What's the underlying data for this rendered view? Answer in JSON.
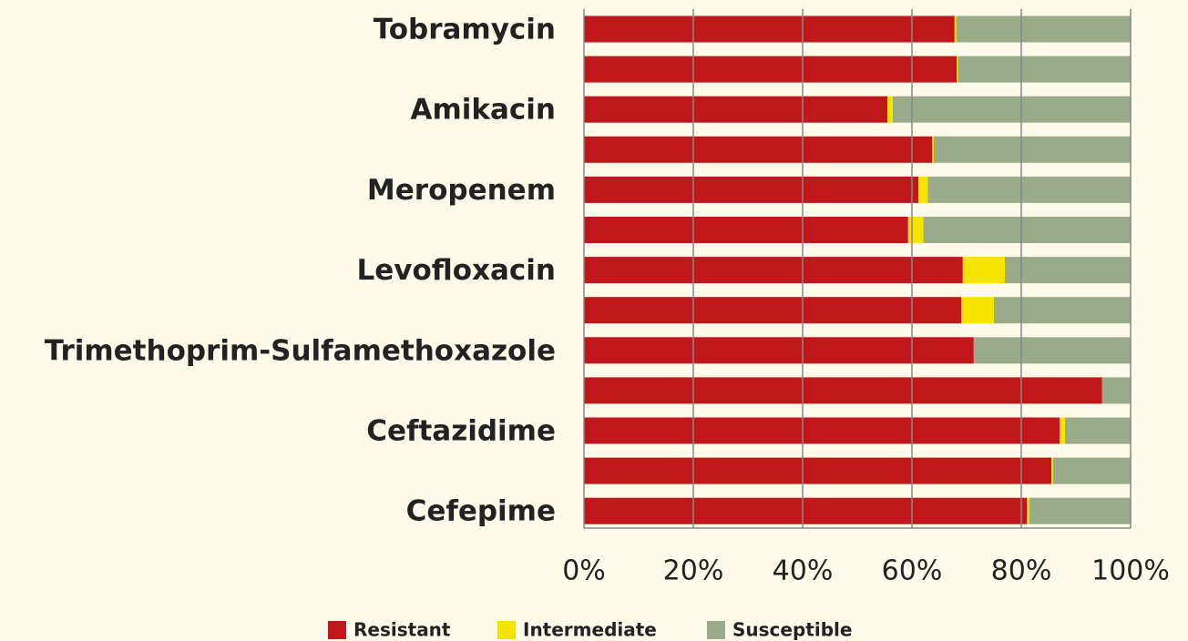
{
  "chart_data": {
    "type": "stacked_barh",
    "categories": [
      "Tobramycin",
      null,
      "Amikacin",
      null,
      "Meropenem",
      null,
      "Levofloxacin",
      null,
      "Trimethoprim-Sulfamethoxazole",
      null,
      "Ceftazidime",
      null,
      "Cefepime"
    ],
    "series": [
      {
        "name": "Resistant",
        "color": "#c0171a",
        "values": [
          67.8,
          68.2,
          55.5,
          63.7,
          61.2,
          59.3,
          69.3,
          69.0,
          71.3,
          94.8,
          87.0,
          85.5,
          81.0
        ]
      },
      {
        "name": "Intermediate",
        "color": "#f5e400",
        "values": [
          0.3,
          0.2,
          1.0,
          0.3,
          1.7,
          2.8,
          7.7,
          6.0,
          0,
          0,
          1.0,
          0.3,
          0.5
        ]
      },
      {
        "name": "Susceptible",
        "color": "#9aab8a",
        "values": [
          31.9,
          31.6,
          43.5,
          36.0,
          37.1,
          37.9,
          23.0,
          25.0,
          28.7,
          5.2,
          12.0,
          14.2,
          18.5
        ]
      }
    ],
    "xlim": [
      0,
      100
    ],
    "xticks": [
      {
        "value": 0,
        "label": "0%"
      },
      {
        "value": 20,
        "label": "20%"
      },
      {
        "value": 40,
        "label": "40%"
      },
      {
        "value": 60,
        "label": "60%"
      },
      {
        "value": 80,
        "label": "80%"
      },
      {
        "value": 100,
        "label": "100%"
      }
    ],
    "grid": true,
    "legend": "bottom"
  }
}
